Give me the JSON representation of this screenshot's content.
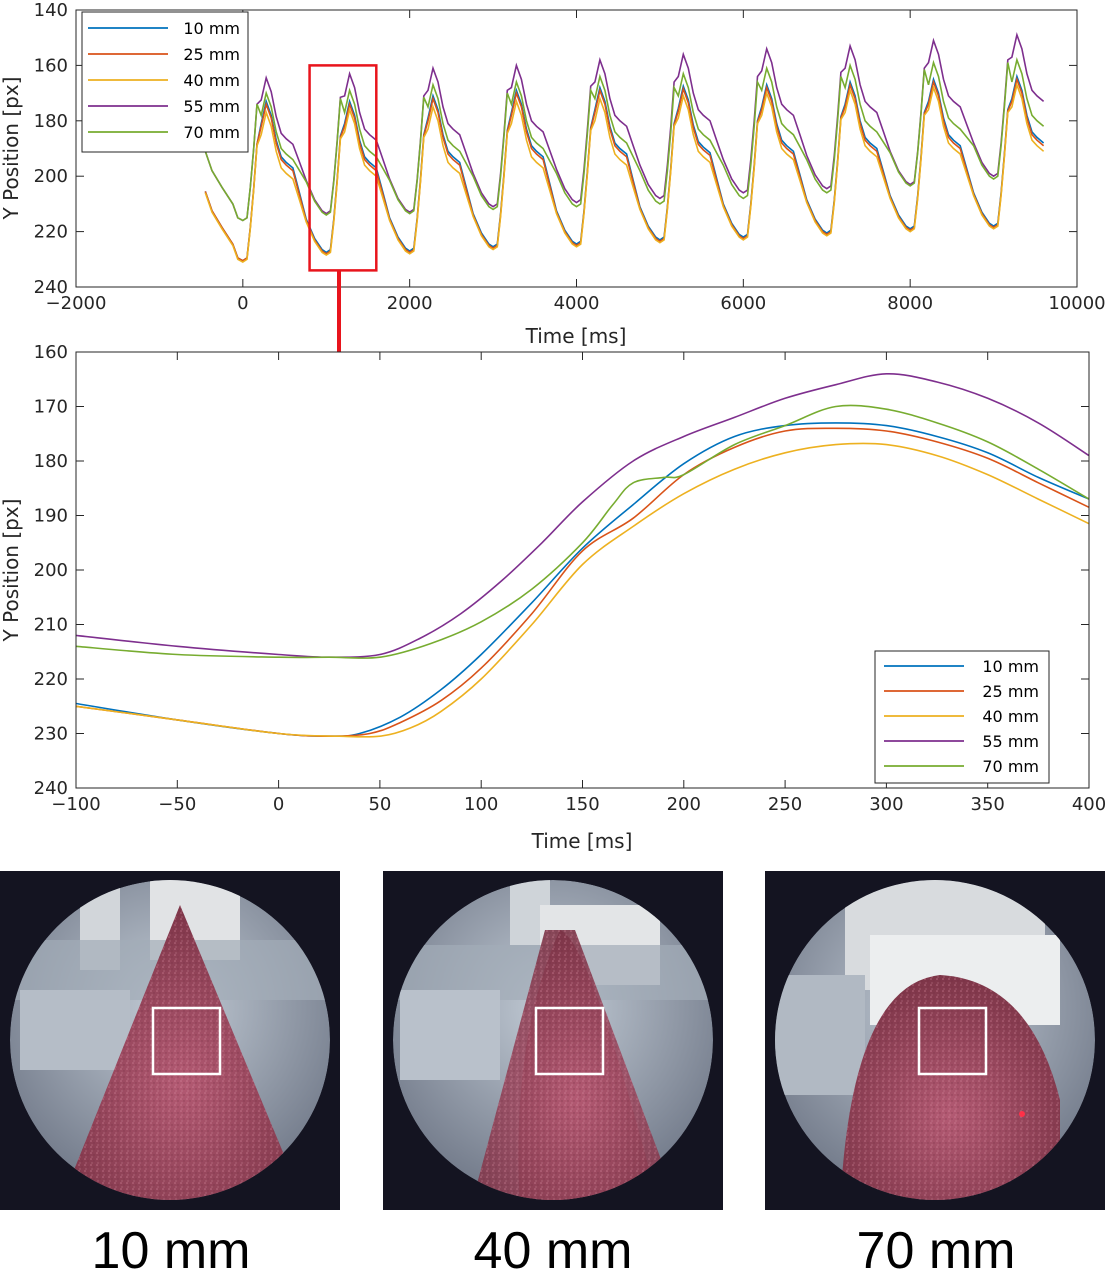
{
  "chart_data": [
    {
      "type": "line",
      "title": "",
      "xlabel": "Time [ms]",
      "ylabel": "Y Position [px]",
      "xlim": [
        -2000,
        10000
      ],
      "ylim": [
        140,
        240
      ],
      "y_reversed": true,
      "xticks": [
        -2000,
        0,
        2000,
        4000,
        6000,
        8000,
        10000
      ],
      "yticks": [
        140,
        160,
        180,
        200,
        220,
        240
      ],
      "xtick_labels": [
        "−2000",
        "0",
        "2000",
        "4000",
        "6000",
        "8000",
        "10000"
      ],
      "ytick_labels": [
        "140",
        "160",
        "180",
        "200",
        "220",
        "240"
      ],
      "legend_position": "top-left",
      "highlight_box": {
        "x": [
          800,
          1600
        ],
        "y": [
          160,
          234
        ],
        "color": "#e8141c"
      },
      "cycle_starts_ms": [
        -450,
        0,
        1000,
        2000,
        3000,
        4000,
        5000,
        6000,
        7000,
        8000,
        9000
      ],
      "cycle_end_ms": 9650,
      "series": [
        {
          "name": "10 mm",
          "color": "#0072bd",
          "troughs": [
            230.5,
            230.5,
            227.5,
            227,
            225.5,
            224.5,
            223,
            222,
            220.5,
            219,
            218
          ],
          "peaks": [
            173,
            173,
            173,
            171,
            169,
            168,
            167.5,
            167,
            166,
            165,
            164
          ]
        },
        {
          "name": "25 mm",
          "color": "#d95319",
          "troughs": [
            230.5,
            230.5,
            228,
            227.5,
            226,
            225,
            223.5,
            222.5,
            221,
            219.5,
            218.5
          ],
          "peaks": [
            174,
            174,
            174,
            172,
            170,
            169,
            168.5,
            168,
            167,
            166,
            165
          ]
        },
        {
          "name": "40 mm",
          "color": "#edb120",
          "troughs": [
            231,
            231,
            228.5,
            228,
            226.5,
            225.5,
            224,
            223,
            221.5,
            220,
            219
          ],
          "peaks": [
            177,
            177,
            176,
            175,
            173,
            172,
            171,
            170,
            169,
            168,
            167
          ]
        },
        {
          "name": "55 mm",
          "color": "#7e2f8e",
          "troughs": [
            216,
            216,
            213.5,
            213,
            211,
            209.5,
            208,
            206,
            204.5,
            203,
            200
          ],
          "peaks": [
            164.5,
            164.5,
            163,
            161,
            160,
            158,
            156,
            154,
            153,
            151,
            149
          ]
        },
        {
          "name": "70 mm",
          "color": "#77ac30",
          "troughs": [
            216,
            216,
            214,
            213.5,
            212,
            211,
            210,
            208,
            206,
            203.5,
            201
          ],
          "peaks": [
            170,
            170,
            169,
            167,
            166,
            164,
            163,
            161,
            160,
            159,
            158
          ]
        }
      ]
    },
    {
      "type": "line",
      "title": "",
      "xlabel": "Time [ms]",
      "ylabel": "Y Position [px]",
      "xlim": [
        -100,
        400
      ],
      "ylim": [
        160,
        240
      ],
      "y_reversed": true,
      "xticks": [
        -100,
        -50,
        0,
        50,
        100,
        150,
        200,
        250,
        300,
        350,
        400
      ],
      "yticks": [
        160,
        170,
        180,
        190,
        200,
        210,
        220,
        230,
        240
      ],
      "xtick_labels": [
        "−100",
        "−50",
        "0",
        "50",
        "100",
        "150",
        "200",
        "250",
        "300",
        "350",
        "400"
      ],
      "ytick_labels": [
        "160",
        "170",
        "180",
        "190",
        "200",
        "210",
        "220",
        "230",
        "240"
      ],
      "legend_position": "bottom-right",
      "series": [
        {
          "name": "10 mm",
          "color": "#0072bd",
          "x": [
            -100,
            -50,
            0,
            25,
            40,
            60,
            80,
            100,
            125,
            150,
            175,
            200,
            225,
            250,
            275,
            300,
            325,
            350,
            375,
            400
          ],
          "y": [
            224.5,
            227.5,
            230,
            230.5,
            230,
            227,
            222,
            215.5,
            206,
            196,
            188,
            180.5,
            175.5,
            173.5,
            173,
            173.5,
            175.5,
            178.5,
            183,
            187
          ]
        },
        {
          "name": "25 mm",
          "color": "#d95319",
          "x": [
            -100,
            -50,
            0,
            25,
            45,
            60,
            80,
            100,
            125,
            150,
            175,
            200,
            225,
            250,
            275,
            300,
            325,
            350,
            375,
            400
          ],
          "y": [
            225,
            227.5,
            230,
            230.5,
            230,
            228,
            224,
            218,
            208,
            196.5,
            190.5,
            182.5,
            177.5,
            174.5,
            174,
            174.5,
            176.5,
            179.5,
            184,
            188.5
          ]
        },
        {
          "name": "40 mm",
          "color": "#edb120",
          "x": [
            -100,
            -50,
            0,
            30,
            50,
            65,
            80,
            100,
            125,
            150,
            175,
            200,
            225,
            250,
            275,
            300,
            325,
            350,
            375,
            400
          ],
          "y": [
            225,
            227.5,
            230,
            230.5,
            230.5,
            229,
            226,
            220,
            210,
            199,
            192,
            186,
            181.5,
            178.5,
            177,
            177,
            179,
            182.5,
            187,
            191.5
          ]
        },
        {
          "name": "55 mm",
          "color": "#7e2f8e",
          "x": [
            -100,
            -50,
            0,
            25,
            50,
            70,
            90,
            110,
            130,
            150,
            175,
            200,
            225,
            250,
            275,
            300,
            325,
            350,
            375,
            400
          ],
          "y": [
            212,
            214,
            215.5,
            216,
            215.5,
            212.5,
            208,
            202,
            195,
            187.5,
            180,
            175.5,
            172,
            168.5,
            166,
            164,
            165.5,
            168.5,
            173,
            179
          ]
        },
        {
          "name": "70 mm",
          "color": "#77ac30",
          "x": [
            -100,
            -50,
            0,
            25,
            50,
            75,
            100,
            125,
            150,
            165,
            175,
            190,
            200,
            225,
            250,
            275,
            300,
            325,
            350,
            375,
            400
          ],
          "y": [
            214,
            215.5,
            216,
            216,
            216,
            213.5,
            209.5,
            203.5,
            195,
            188,
            184,
            183,
            182.5,
            177,
            173.5,
            170,
            170.5,
            173,
            176.5,
            181.5,
            187
          ]
        }
      ]
    }
  ],
  "photos": [
    {
      "caption": "10 mm",
      "variant": "10"
    },
    {
      "caption": "40 mm",
      "variant": "40"
    },
    {
      "caption": "70 mm",
      "variant": "70"
    }
  ],
  "colors": {
    "highlight": "#e8141c",
    "photo_background": "#141421",
    "tissue": "#a8506a",
    "roi_box": "#ffffff"
  }
}
